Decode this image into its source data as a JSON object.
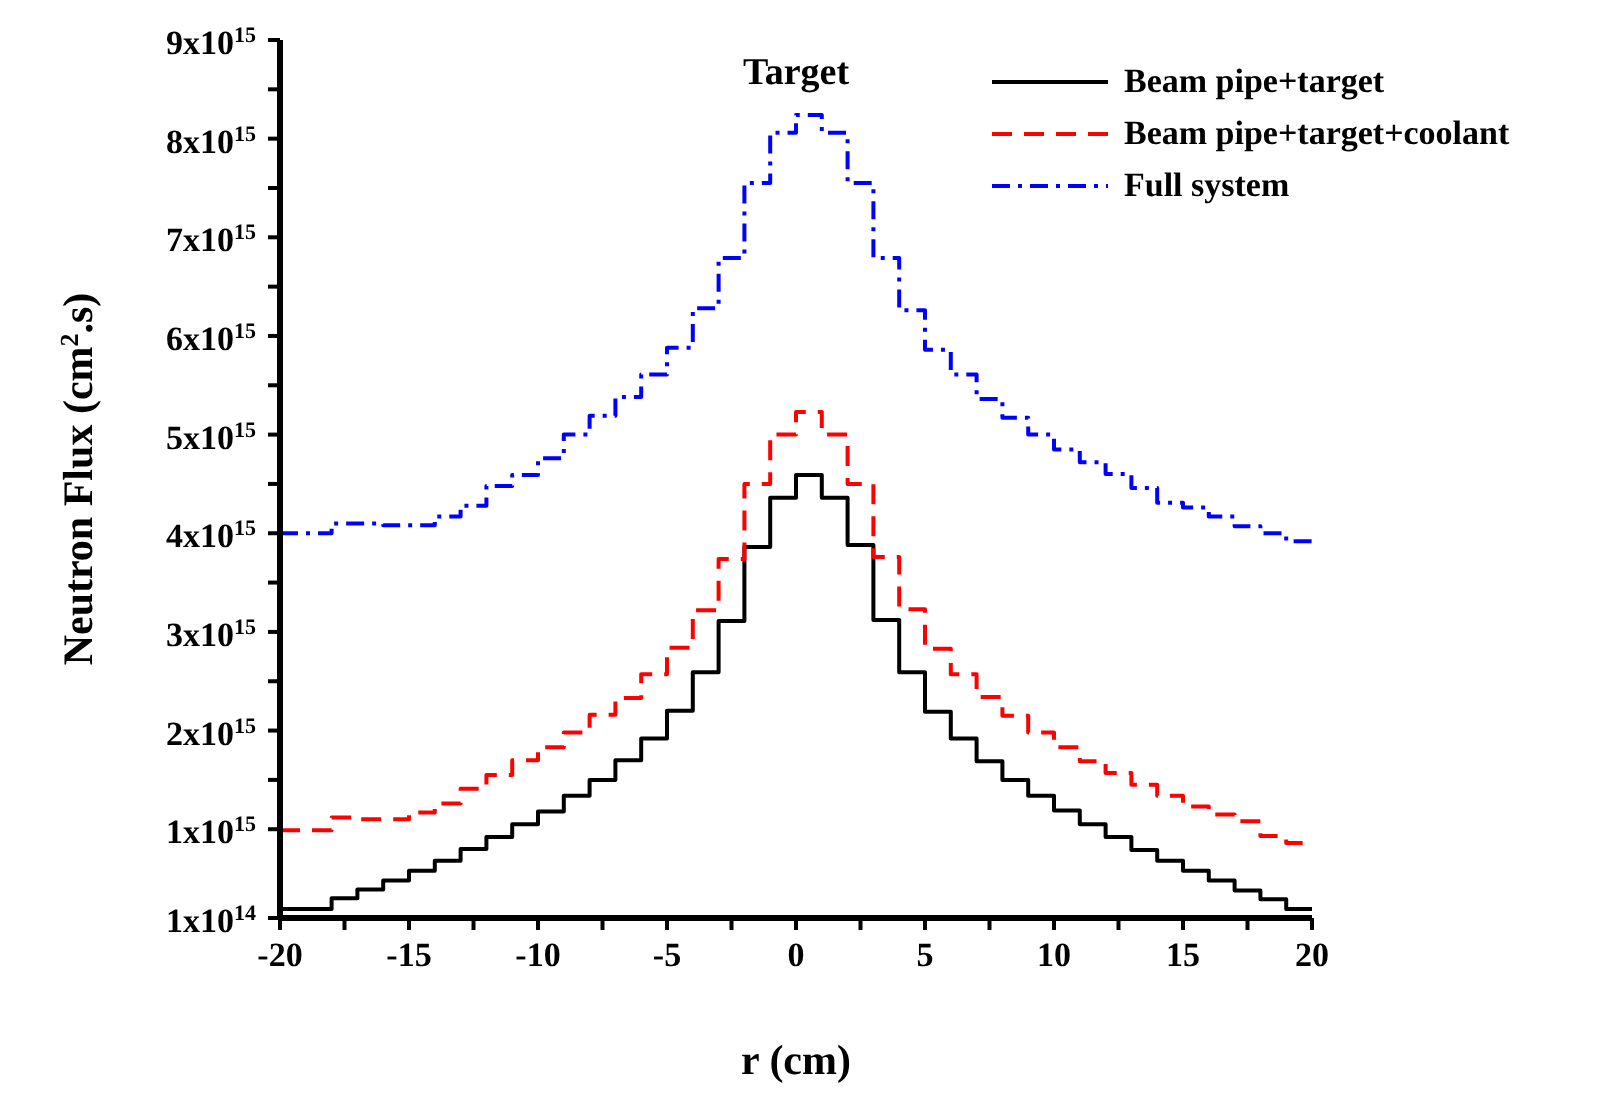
{
  "chart_data": {
    "type": "step",
    "title": "Target",
    "xlabel": "r (cm)",
    "ylabel": "Neutron Flux (cm$^{2}$.s)",
    "xlim": [
      -20,
      20
    ],
    "xticks": [
      -20,
      {
        "value": -17.5,
        "label": null
      },
      -15,
      {
        "value": -12.5,
        "label": null
      },
      -10,
      {
        "value": -7.5,
        "label": null
      },
      -5,
      {
        "value": -2.5,
        "label": null
      },
      0,
      {
        "value": 2.5,
        "label": null
      },
      5,
      {
        "value": 7.5,
        "label": null
      },
      10,
      {
        "value": 12.5,
        "label": null
      },
      15,
      {
        "value": 17.5,
        "label": null
      },
      20
    ],
    "ylim": [
      100000000000000.0,
      9000000000000000.0
    ],
    "yticks": [
      {
        "value": 100000000000000.0,
        "label": "1x10$^{14}$"
      },
      {
        "value": 1000000000000000.0,
        "label": "1x10$^{15}$"
      },
      {
        "value": 1500000000000000.0,
        "label": null
      },
      {
        "value": 2000000000000000.0,
        "label": "2x10$^{15}$"
      },
      {
        "value": 2500000000000000.0,
        "label": null
      },
      {
        "value": 3000000000000000.0,
        "label": "3x10$^{15}$"
      },
      {
        "value": 3500000000000000.0,
        "label": null
      },
      {
        "value": 4000000000000000.0,
        "label": "4x10$^{15}$"
      },
      {
        "value": 4500000000000000.0,
        "label": null
      },
      {
        "value": 5000000000000000.0,
        "label": "5x10$^{15}$"
      },
      {
        "value": 5500000000000000.0,
        "label": null
      },
      {
        "value": 6000000000000000.0,
        "label": "6x10$^{15}$"
      },
      {
        "value": 6500000000000000.0,
        "label": null
      },
      {
        "value": 7000000000000000.0,
        "label": "7x10$^{15}$"
      },
      {
        "value": 7500000000000000.0,
        "label": null
      },
      {
        "value": 8000000000000000.0,
        "label": "8x10$^{15}$"
      },
      {
        "value": 8500000000000000.0,
        "label": null
      },
      {
        "value": 9000000000000000.0,
        "label": "9x10$^{15}$"
      }
    ],
    "x": [
      -20,
      -18,
      -17,
      -16,
      -15,
      -14,
      -13,
      -12,
      -11,
      -10,
      -9,
      -8,
      -7,
      -6,
      -5,
      -4,
      -3,
      -2,
      -1,
      0,
      1,
      2,
      3,
      4,
      5,
      6,
      7,
      8,
      9,
      10,
      11,
      12,
      13,
      14,
      15,
      16,
      17,
      18,
      19,
      20
    ],
    "legend": "top right",
    "grid": false,
    "series": [
      {
        "name": "Beam pipe+target",
        "color": "#000000",
        "line_style": "solid",
        "values": [
          190000000000000.0,
          300000000000000.0,
          390000000000000.0,
          480000000000000.0,
          580000000000000.0,
          680000000000000.0,
          800000000000000.0,
          920000000000000.0,
          1050000000000000.0,
          1180000000000000.0,
          1340000000000000.0,
          1500000000000000.0,
          1700000000000000.0,
          1920000000000000.0,
          2200000000000000.0,
          2590000000000000.0,
          3110000000000000.0,
          3860000000000000.0,
          4360000000000000.0,
          4590000000000000.0,
          4360000000000000.0,
          3880000000000000.0,
          3120000000000000.0,
          2590000000000000.0,
          2190000000000000.0,
          1920000000000000.0,
          1690000000000000.0,
          1500000000000000.0,
          1340000000000000.0,
          1190000000000000.0,
          1050000000000000.0,
          920000000000000.0,
          790000000000000.0,
          680000000000000.0,
          580000000000000.0,
          480000000000000.0,
          380000000000000.0,
          290000000000000.0,
          190000000000000.0,
          190000000000000.0
        ]
      },
      {
        "name": "Beam pipe+target+coolant",
        "color": "#ff0000",
        "line_style": "dashed",
        "values": [
          990000000000000.0,
          1120000000000000.0,
          1100000000000000.0,
          1100000000000000.0,
          1170000000000000.0,
          1260000000000000.0,
          1410000000000000.0,
          1550000000000000.0,
          1700000000000000.0,
          1830000000000000.0,
          1980000000000000.0,
          2160000000000000.0,
          2330000000000000.0,
          2570000000000000.0,
          2840000000000000.0,
          3220000000000000.0,
          3740000000000000.0,
          4500000000000000.0,
          5000000000000000.0,
          5230000000000000.0,
          5000000000000000.0,
          4500000000000000.0,
          3760000000000000.0,
          3230000000000000.0,
          2830000000000000.0,
          2570000000000000.0,
          2340000000000000.0,
          2150000000000000.0,
          1980000000000000.0,
          1830000000000000.0,
          1690000000000000.0,
          1570000000000000.0,
          1450000000000000.0,
          1340000000000000.0,
          1230000000000000.0,
          1150000000000000.0,
          1080000000000000.0,
          930000000000000.0,
          860000000000000.0,
          860000000000000.0
        ]
      },
      {
        "name": "Full system",
        "color": "#0000ff",
        "line_style": "dashdot",
        "values": [
          4000000000000000.0,
          4100000000000000.0,
          4100000000000000.0,
          4080000000000000.0,
          4080000000000000.0,
          4170000000000000.0,
          4280000000000000.0,
          4480000000000000.0,
          4590000000000000.0,
          4760000000000000.0,
          5000000000000000.0,
          5190000000000000.0,
          5380000000000000.0,
          5610000000000000.0,
          5880000000000000.0,
          6280000000000000.0,
          6790000000000000.0,
          7550000000000000.0,
          8060000000000000.0,
          8240000000000000.0,
          8060000000000000.0,
          7550000000000000.0,
          6790000000000000.0,
          6260000000000000.0,
          5860000000000000.0,
          5610000000000000.0,
          5360000000000000.0,
          5170000000000000.0,
          5000000000000000.0,
          4850000000000000.0,
          4720000000000000.0,
          4600000000000000.0,
          4460000000000000.0,
          4310000000000000.0,
          4260000000000000.0,
          4170000000000000.0,
          4070000000000000.0,
          4000000000000000.0,
          3920000000000000.0,
          3920000000000000.0
        ]
      }
    ]
  }
}
